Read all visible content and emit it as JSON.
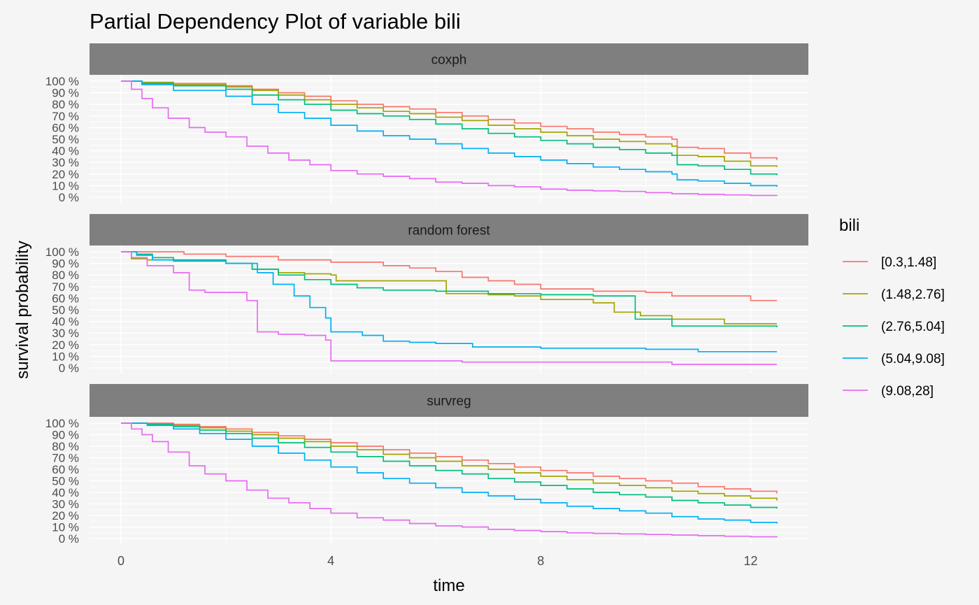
{
  "chart_data": {
    "type": "line",
    "title": "Partial Dependency Plot of variable bili",
    "xlabel": "time",
    "ylabel": "survival probability",
    "xlim": [
      -0.6,
      13.1
    ],
    "ylim": [
      0,
      1
    ],
    "x_ticks": [
      0,
      4,
      8,
      12
    ],
    "x_tick_labels": [
      "0",
      "4",
      "8",
      "12"
    ],
    "y_ticks": [
      0,
      0.1,
      0.2,
      0.3,
      0.4,
      0.5,
      0.6,
      0.7,
      0.8,
      0.9,
      1.0
    ],
    "y_tick_labels": [
      "0 %",
      "10 %",
      "20 %",
      "30 %",
      "40 %",
      "50 %",
      "60 %",
      "70 %",
      "80 %",
      "90 %",
      "100 %"
    ],
    "legend": {
      "title": "bili",
      "position": "right",
      "entries": [
        "[0.3,1.48]",
        "(1.48,2.76]",
        "(2.76,5.04]",
        "(5.04,9.08]",
        "(9.08,28]"
      ]
    },
    "colors": [
      "#F8766D",
      "#A3A500",
      "#00BF7D",
      "#00B0F6",
      "#E76BF3"
    ],
    "grid": true,
    "panels": [
      {
        "name": "coxph",
        "series": [
          {
            "name": "[0.3,1.48]",
            "x": [
              0,
              0.4,
              1,
              2,
              2.5,
              3,
              3.5,
              4,
              4.5,
              5,
              5.5,
              6,
              6.5,
              7,
              7.5,
              8,
              8.5,
              9,
              9.5,
              10,
              10.5,
              10.6,
              11,
              11.5,
              12,
              12.5
            ],
            "y": [
              1,
              0.99,
              0.98,
              0.96,
              0.93,
              0.9,
              0.87,
              0.83,
              0.8,
              0.78,
              0.76,
              0.73,
              0.7,
              0.67,
              0.64,
              0.61,
              0.59,
              0.56,
              0.54,
              0.52,
              0.5,
              0.43,
              0.42,
              0.38,
              0.34,
              0.32
            ]
          },
          {
            "name": "(1.48,2.76]",
            "x": [
              0,
              0.4,
              1,
              2,
              2.5,
              3,
              3.5,
              4,
              4.5,
              5,
              5.5,
              6,
              6.5,
              7,
              7.5,
              8,
              8.5,
              9,
              9.5,
              10,
              10.5,
              10.6,
              11,
              11.5,
              12,
              12.5
            ],
            "y": [
              1,
              0.99,
              0.97,
              0.95,
              0.92,
              0.88,
              0.84,
              0.8,
              0.77,
              0.74,
              0.72,
              0.69,
              0.66,
              0.62,
              0.59,
              0.56,
              0.53,
              0.5,
              0.48,
              0.46,
              0.44,
              0.36,
              0.35,
              0.31,
              0.27,
              0.26
            ]
          },
          {
            "name": "(2.76,5.04]",
            "x": [
              0,
              0.4,
              1,
              2,
              2.5,
              3,
              3.5,
              4,
              4.5,
              5,
              5.5,
              6,
              6.5,
              7,
              7.5,
              8,
              8.5,
              9,
              9.5,
              10,
              10.5,
              10.6,
              11,
              11.5,
              12,
              12.5
            ],
            "y": [
              1,
              0.98,
              0.96,
              0.93,
              0.88,
              0.84,
              0.8,
              0.75,
              0.72,
              0.7,
              0.67,
              0.63,
              0.59,
              0.55,
              0.52,
              0.49,
              0.46,
              0.43,
              0.41,
              0.38,
              0.36,
              0.28,
              0.27,
              0.24,
              0.2,
              0.19
            ]
          },
          {
            "name": "(5.04,9.08]",
            "x": [
              0,
              0.4,
              1,
              2,
              2.5,
              3,
              3.5,
              4,
              4.5,
              5,
              5.5,
              6,
              6.5,
              7,
              7.5,
              8,
              8.5,
              9,
              9.5,
              10,
              10.5,
              10.6,
              11,
              11.5,
              12,
              12.5
            ],
            "y": [
              1,
              0.97,
              0.92,
              0.87,
              0.8,
              0.73,
              0.68,
              0.62,
              0.57,
              0.53,
              0.5,
              0.46,
              0.42,
              0.38,
              0.35,
              0.32,
              0.29,
              0.26,
              0.24,
              0.22,
              0.2,
              0.15,
              0.14,
              0.12,
              0.1,
              0.09
            ]
          },
          {
            "name": "(9.08,28]",
            "x": [
              0,
              0.2,
              0.4,
              0.6,
              0.9,
              1.3,
              1.6,
              2,
              2.4,
              2.8,
              3.2,
              3.6,
              4,
              4.5,
              5,
              5.5,
              6,
              6.5,
              7,
              7.5,
              8,
              8.5,
              9,
              9.5,
              10,
              10.5,
              11,
              11.5,
              12,
              12.5
            ],
            "y": [
              1,
              0.93,
              0.85,
              0.77,
              0.68,
              0.6,
              0.56,
              0.52,
              0.44,
              0.38,
              0.32,
              0.28,
              0.23,
              0.2,
              0.18,
              0.16,
              0.13,
              0.12,
              0.1,
              0.09,
              0.07,
              0.06,
              0.055,
              0.05,
              0.04,
              0.03,
              0.025,
              0.02,
              0.015,
              0.01
            ]
          }
        ]
      },
      {
        "name": "random forest",
        "series": [
          {
            "name": "[0.3,1.48]",
            "x": [
              0,
              0.5,
              1.2,
              2,
              3,
              4,
              5,
              5.5,
              6,
              6.5,
              7,
              7.5,
              8,
              9,
              10,
              10.5,
              12,
              12.5
            ],
            "y": [
              1,
              1,
              0.98,
              0.96,
              0.93,
              0.91,
              0.88,
              0.86,
              0.83,
              0.78,
              0.75,
              0.72,
              0.68,
              0.66,
              0.65,
              0.62,
              0.58,
              0.58
            ]
          },
          {
            "name": "(1.48,2.76]",
            "x": [
              0,
              0.2,
              0.5,
              1,
              2,
              2.5,
              3,
              3.5,
              4,
              4.1,
              6,
              6.2,
              7,
              7.5,
              8,
              9,
              9.4,
              9.9,
              10.5,
              11.5,
              12.5
            ],
            "y": [
              1,
              0.94,
              0.93,
              0.92,
              0.9,
              0.85,
              0.82,
              0.81,
              0.8,
              0.75,
              0.75,
              0.64,
              0.63,
              0.62,
              0.59,
              0.56,
              0.48,
              0.45,
              0.42,
              0.38,
              0.38
            ]
          },
          {
            "name": "(2.76,5.04]",
            "x": [
              0,
              0.3,
              0.6,
              1,
              2,
              2.5,
              3,
              3.5,
              4,
              4.5,
              5,
              6,
              7,
              8,
              9,
              9.8,
              10.5,
              12.5
            ],
            "y": [
              1,
              0.98,
              0.95,
              0.93,
              0.9,
              0.85,
              0.8,
              0.76,
              0.72,
              0.69,
              0.67,
              0.66,
              0.64,
              0.63,
              0.62,
              0.42,
              0.36,
              0.35
            ]
          },
          {
            "name": "(5.04,9.08]",
            "x": [
              0,
              0.3,
              0.6,
              1,
              2,
              2.6,
              2.9,
              3.3,
              3.6,
              3.9,
              4,
              4.6,
              5,
              5.5,
              6,
              6.7,
              8,
              10,
              11,
              12.5
            ],
            "y": [
              1,
              0.97,
              0.93,
              0.92,
              0.9,
              0.82,
              0.72,
              0.62,
              0.52,
              0.43,
              0.31,
              0.28,
              0.23,
              0.22,
              0.21,
              0.18,
              0.17,
              0.16,
              0.14,
              0.14
            ]
          },
          {
            "name": "(9.08,28]",
            "x": [
              0,
              0.2,
              0.5,
              1,
              1.3,
              1.6,
              2.4,
              2.6,
              3,
              3.5,
              3.9,
              4,
              5,
              6,
              6.5,
              8,
              10.5,
              12.5
            ],
            "y": [
              1,
              0.95,
              0.88,
              0.82,
              0.67,
              0.65,
              0.58,
              0.31,
              0.29,
              0.28,
              0.24,
              0.06,
              0.06,
              0.06,
              0.05,
              0.05,
              0.03,
              0.03
            ]
          }
        ]
      },
      {
        "name": "survreg",
        "series": [
          {
            "name": "[0.3,1.48]",
            "x": [
              0,
              0.5,
              1,
              1.5,
              2,
              2.5,
              3,
              3.5,
              4,
              4.5,
              5,
              5.5,
              6,
              6.5,
              7,
              7.5,
              8,
              8.5,
              9,
              9.5,
              10,
              10.5,
              11,
              11.5,
              12,
              12.5
            ],
            "y": [
              1,
              1,
              0.99,
              0.97,
              0.95,
              0.92,
              0.89,
              0.86,
              0.83,
              0.8,
              0.77,
              0.74,
              0.71,
              0.68,
              0.65,
              0.62,
              0.59,
              0.57,
              0.54,
              0.52,
              0.5,
              0.48,
              0.45,
              0.43,
              0.41,
              0.39
            ]
          },
          {
            "name": "(1.48,2.76]",
            "x": [
              0,
              0.5,
              1,
              1.5,
              2,
              2.5,
              3,
              3.5,
              4,
              4.5,
              5,
              5.5,
              6,
              6.5,
              7,
              7.5,
              8,
              8.5,
              9,
              9.5,
              10,
              10.5,
              11,
              11.5,
              12,
              12.5
            ],
            "y": [
              1,
              0.99,
              0.98,
              0.96,
              0.93,
              0.9,
              0.87,
              0.84,
              0.8,
              0.77,
              0.73,
              0.7,
              0.67,
              0.63,
              0.6,
              0.57,
              0.54,
              0.51,
              0.48,
              0.46,
              0.44,
              0.41,
              0.39,
              0.37,
              0.35,
              0.33
            ]
          },
          {
            "name": "(2.76,5.04]",
            "x": [
              0,
              0.5,
              1,
              1.5,
              2,
              2.5,
              3,
              3.5,
              4,
              4.5,
              5,
              5.5,
              6,
              6.5,
              7,
              7.5,
              8,
              8.5,
              9,
              9.5,
              10,
              10.5,
              11,
              11.5,
              12,
              12.5
            ],
            "y": [
              1,
              0.99,
              0.97,
              0.94,
              0.91,
              0.87,
              0.83,
              0.79,
              0.75,
              0.71,
              0.67,
              0.63,
              0.59,
              0.56,
              0.52,
              0.49,
              0.46,
              0.43,
              0.4,
              0.38,
              0.36,
              0.33,
              0.31,
              0.29,
              0.27,
              0.26
            ]
          },
          {
            "name": "(5.04,9.08]",
            "x": [
              0,
              0.5,
              1,
              1.5,
              2,
              2.5,
              3,
              3.5,
              4,
              4.5,
              5,
              5.5,
              6,
              6.5,
              7,
              7.5,
              8,
              8.5,
              9,
              9.5,
              10,
              10.5,
              11,
              11.5,
              12,
              12.5
            ],
            "y": [
              1,
              0.98,
              0.95,
              0.91,
              0.86,
              0.8,
              0.74,
              0.68,
              0.62,
              0.57,
              0.52,
              0.48,
              0.44,
              0.4,
              0.37,
              0.34,
              0.31,
              0.28,
              0.26,
              0.24,
              0.22,
              0.19,
              0.17,
              0.16,
              0.14,
              0.13
            ]
          },
          {
            "name": "(9.08,28]",
            "x": [
              0,
              0.2,
              0.4,
              0.6,
              0.9,
              1.3,
              1.6,
              2,
              2.4,
              2.8,
              3.2,
              3.6,
              4,
              4.5,
              5,
              5.5,
              6,
              6.5,
              7,
              7.5,
              8,
              8.5,
              9,
              9.5,
              10,
              10.5,
              11,
              11.5,
              12,
              12.5
            ],
            "y": [
              1,
              0.95,
              0.9,
              0.84,
              0.75,
              0.63,
              0.56,
              0.5,
              0.42,
              0.35,
              0.31,
              0.26,
              0.22,
              0.18,
              0.16,
              0.13,
              0.11,
              0.1,
              0.08,
              0.07,
              0.06,
              0.05,
              0.045,
              0.04,
              0.035,
              0.03,
              0.025,
              0.02,
              0.015,
              0.01
            ]
          }
        ]
      }
    ]
  }
}
